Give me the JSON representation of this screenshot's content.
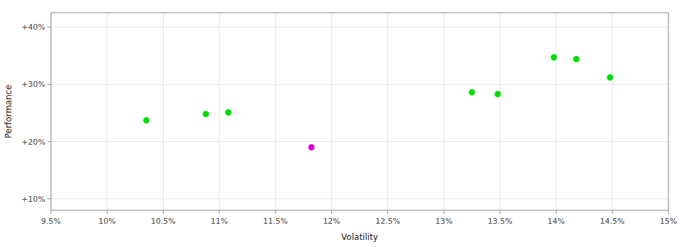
{
  "chart_data": {
    "type": "scatter",
    "xlabel": "Volatility",
    "ylabel": "Performance",
    "xlim": [
      0.095,
      0.15
    ],
    "ylim": [
      0.08,
      0.425
    ],
    "xticks": [
      {
        "value": 0.095,
        "label": "9.5%"
      },
      {
        "value": 0.1,
        "label": "10%"
      },
      {
        "value": 0.105,
        "label": "10.5%"
      },
      {
        "value": 0.11,
        "label": "11%"
      },
      {
        "value": 0.115,
        "label": "11.5%"
      },
      {
        "value": 0.12,
        "label": "12%"
      },
      {
        "value": 0.125,
        "label": "12.5%"
      },
      {
        "value": 0.13,
        "label": "13%"
      },
      {
        "value": 0.135,
        "label": "13.5%"
      },
      {
        "value": 0.14,
        "label": "14%"
      },
      {
        "value": 0.145,
        "label": "14.5%"
      },
      {
        "value": 0.15,
        "label": "15%"
      }
    ],
    "yticks": [
      {
        "value": 0.1,
        "label": "+10%"
      },
      {
        "value": 0.2,
        "label": "+20%"
      },
      {
        "value": 0.3,
        "label": "+30%"
      },
      {
        "value": 0.4,
        "label": "+40%"
      }
    ],
    "grid": true,
    "series": [
      {
        "color": "#00dd00",
        "x": [
          0.1035,
          0.1088,
          0.1108,
          0.1325,
          0.1348,
          0.1398,
          0.1418,
          0.1448
        ],
        "values": [
          0.237,
          0.248,
          0.251,
          0.286,
          0.283,
          0.347,
          0.344,
          0.312
        ]
      },
      {
        "color": "#dd00dd",
        "x": [
          0.1182
        ],
        "values": [
          0.19
        ]
      }
    ]
  }
}
